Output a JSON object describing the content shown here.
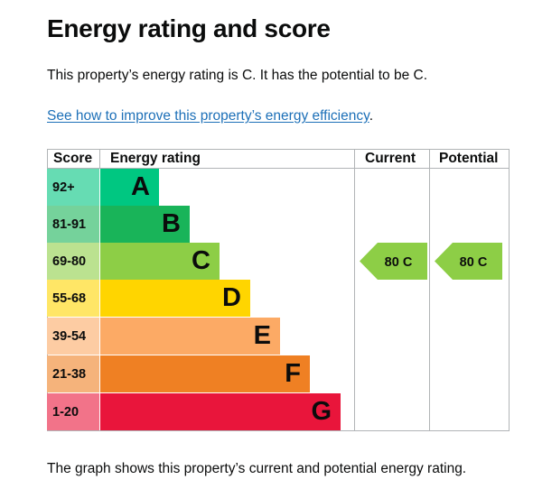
{
  "page": {
    "title": "Energy rating and score",
    "summary": "This property’s energy rating is C. It has the potential to be C.",
    "improve_link": "See how to improve this property’s energy efficiency",
    "improve_suffix": ".",
    "footer": "The graph shows this property’s current and potential energy rating."
  },
  "graph": {
    "headers": {
      "score": "Score",
      "energy_rating": "Energy rating",
      "current": "Current",
      "potential": "Potential"
    },
    "bands": [
      {
        "score": "92+",
        "letter": "A",
        "color": "#00c781",
        "score_bg": "#66dcb3"
      },
      {
        "score": "81-91",
        "letter": "B",
        "color": "#19b459",
        "score_bg": "#75d29b"
      },
      {
        "score": "69-80",
        "letter": "C",
        "color": "#8dce46",
        "score_bg": "#bbe290"
      },
      {
        "score": "55-68",
        "letter": "D",
        "color": "#ffd500",
        "score_bg": "#ffe666"
      },
      {
        "score": "39-54",
        "letter": "E",
        "color": "#fcaa65",
        "score_bg": "#fdcca3"
      },
      {
        "score": "21-38",
        "letter": "F",
        "color": "#ef8023",
        "score_bg": "#f5b37b"
      },
      {
        "score": "1-20",
        "letter": "G",
        "color": "#e9153b",
        "score_bg": "#f27389"
      }
    ],
    "current": {
      "label": "80 C",
      "score": 80,
      "band": "C",
      "color": "#8dce46"
    },
    "potential": {
      "label": "80 C",
      "score": 80,
      "band": "C",
      "color": "#8dce46"
    }
  }
}
